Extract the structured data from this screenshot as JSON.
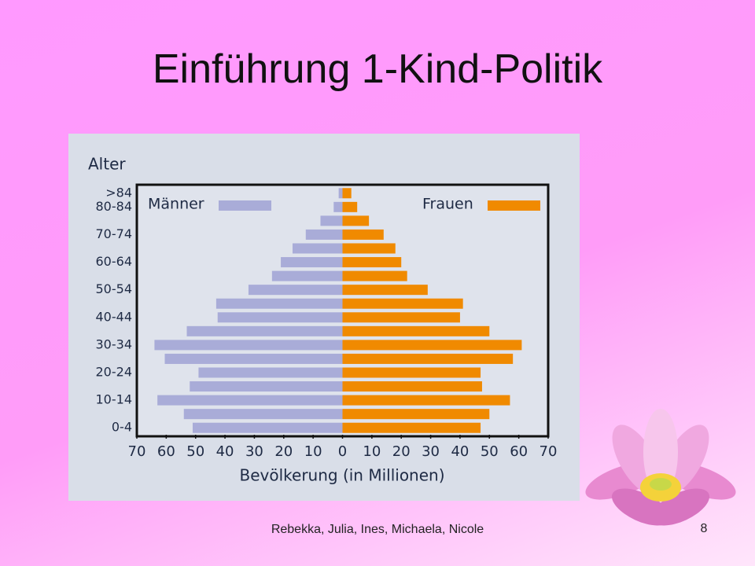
{
  "slide": {
    "title": "Einführung 1-Kind-Politik",
    "footer": "Rebekka, Julia, Ines, Michaela, Nicole",
    "page_number": "8"
  },
  "chart_data": {
    "type": "pyramid",
    "y_axis_label": "Alter",
    "x_axis_label": "Bevölkerung (in Millionen)",
    "categories": [
      ">84",
      "80-84",
      null,
      "70-74",
      null,
      "60-64",
      null,
      "50-54",
      null,
      "40-44",
      null,
      "30-34",
      null,
      "20-24",
      null,
      "10-14",
      null,
      "0-4"
    ],
    "series": [
      {
        "name": "Männer",
        "color": "#a9acd8",
        "side": "left",
        "values": [
          1.3,
          3,
          7.5,
          12.5,
          17,
          21,
          24,
          32,
          43,
          42.5,
          53,
          64,
          60.5,
          49,
          52,
          63,
          54,
          51
        ]
      },
      {
        "name": "Frauen",
        "color": "#f08a00",
        "side": "right",
        "values": [
          3,
          5,
          9,
          14,
          18,
          20,
          22,
          29,
          41,
          40,
          50,
          61,
          58,
          47,
          47.5,
          57,
          50,
          47
        ]
      }
    ],
    "xlim": [
      -70,
      70
    ],
    "xticks": [
      {
        "value": -70,
        "label": "70"
      },
      {
        "value": -60,
        "label": "60"
      },
      {
        "value": -50,
        "label": "50"
      },
      {
        "value": -40,
        "label": "40"
      },
      {
        "value": -30,
        "label": "30"
      },
      {
        "value": -20,
        "label": "20"
      },
      {
        "value": -10,
        "label": "10"
      },
      0,
      10,
      20,
      30,
      40,
      50,
      60,
      70
    ]
  }
}
